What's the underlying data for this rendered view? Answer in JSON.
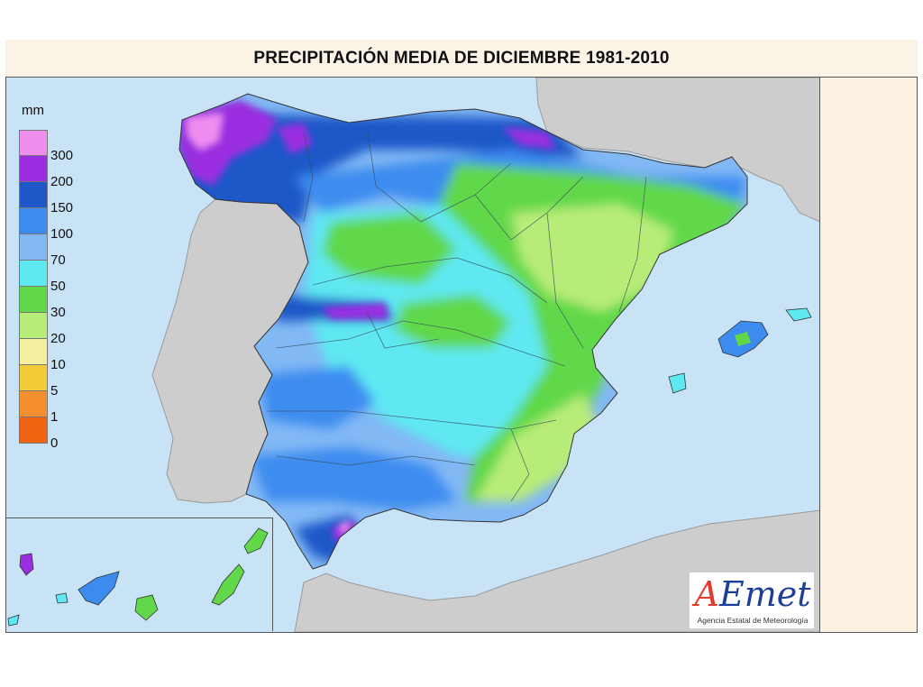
{
  "title": "PRECIPITACIÓN MEDIA DE DICIEMBRE 1981-2010",
  "legend": {
    "unit": "mm",
    "classes": [
      {
        "label": "300",
        "color": "#f08ef0"
      },
      {
        "label": "200",
        "color": "#9a2ee0"
      },
      {
        "label": "150",
        "color": "#1e58c8"
      },
      {
        "label": "100",
        "color": "#3c8cf0"
      },
      {
        "label": "70",
        "color": "#82b8f4"
      },
      {
        "label": "50",
        "color": "#5ee8f2"
      },
      {
        "label": "30",
        "color": "#60d84a"
      },
      {
        "label": "20",
        "color": "#b8ec78"
      },
      {
        "label": "10",
        "color": "#f4f0a0"
      },
      {
        "label": "5",
        "color": "#f4cc3a"
      },
      {
        "label": "1",
        "color": "#f49030"
      },
      {
        "label": "0",
        "color": "#f06414"
      }
    ]
  },
  "logo": {
    "name": "AEmet",
    "subtitle": "Agencia Estatal de Meteorología"
  },
  "colors": {
    "sea": "#c8e2f6",
    "land_neighbors": "#cdcdcd",
    "border": "#555555"
  }
}
